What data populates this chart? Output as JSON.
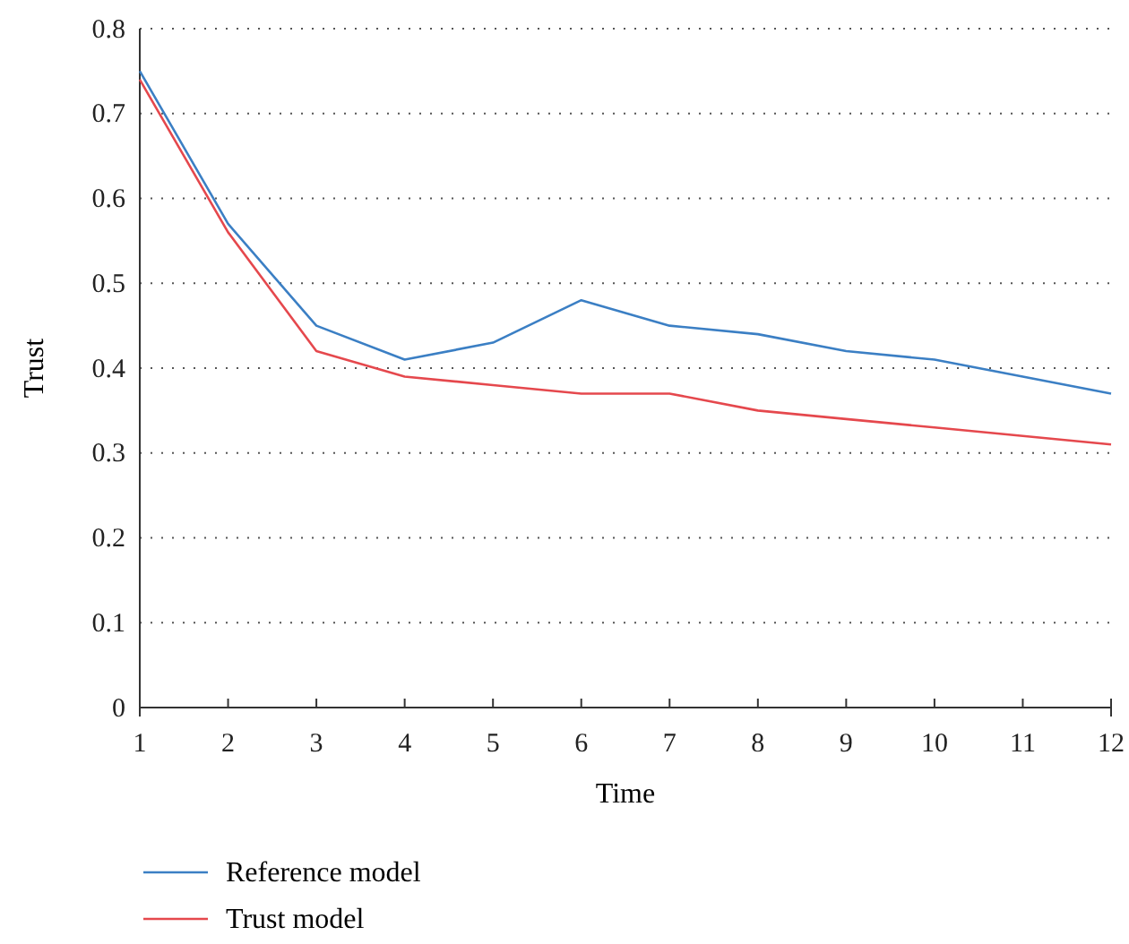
{
  "chart_data": {
    "type": "line",
    "xlabel": "Time",
    "ylabel": "Trust",
    "x": [
      1,
      2,
      3,
      4,
      5,
      6,
      7,
      8,
      9,
      10,
      11,
      12
    ],
    "xlim": [
      1,
      12
    ],
    "xticks": [
      1,
      2,
      3,
      4,
      5,
      6,
      7,
      8,
      9,
      10,
      11,
      12
    ],
    "ylim": [
      0,
      0.8
    ],
    "yticks": [
      0,
      0.1,
      0.2,
      0.3,
      0.4,
      0.5,
      0.6,
      0.7,
      0.8
    ],
    "grid": "y",
    "legend": "bottom",
    "marker": "none",
    "line_style": "solid",
    "series": [
      {
        "name": "Reference model",
        "color": "#3b7fc4",
        "values": [
          0.75,
          0.57,
          0.45,
          0.41,
          0.43,
          0.48,
          0.45,
          0.44,
          0.42,
          0.41,
          0.39,
          0.37
        ]
      },
      {
        "name": "Trust model",
        "color": "#e5484d",
        "values": [
          0.74,
          0.56,
          0.42,
          0.39,
          0.38,
          0.37,
          0.37,
          0.35,
          0.34,
          0.33,
          0.32,
          0.31
        ]
      }
    ]
  }
}
